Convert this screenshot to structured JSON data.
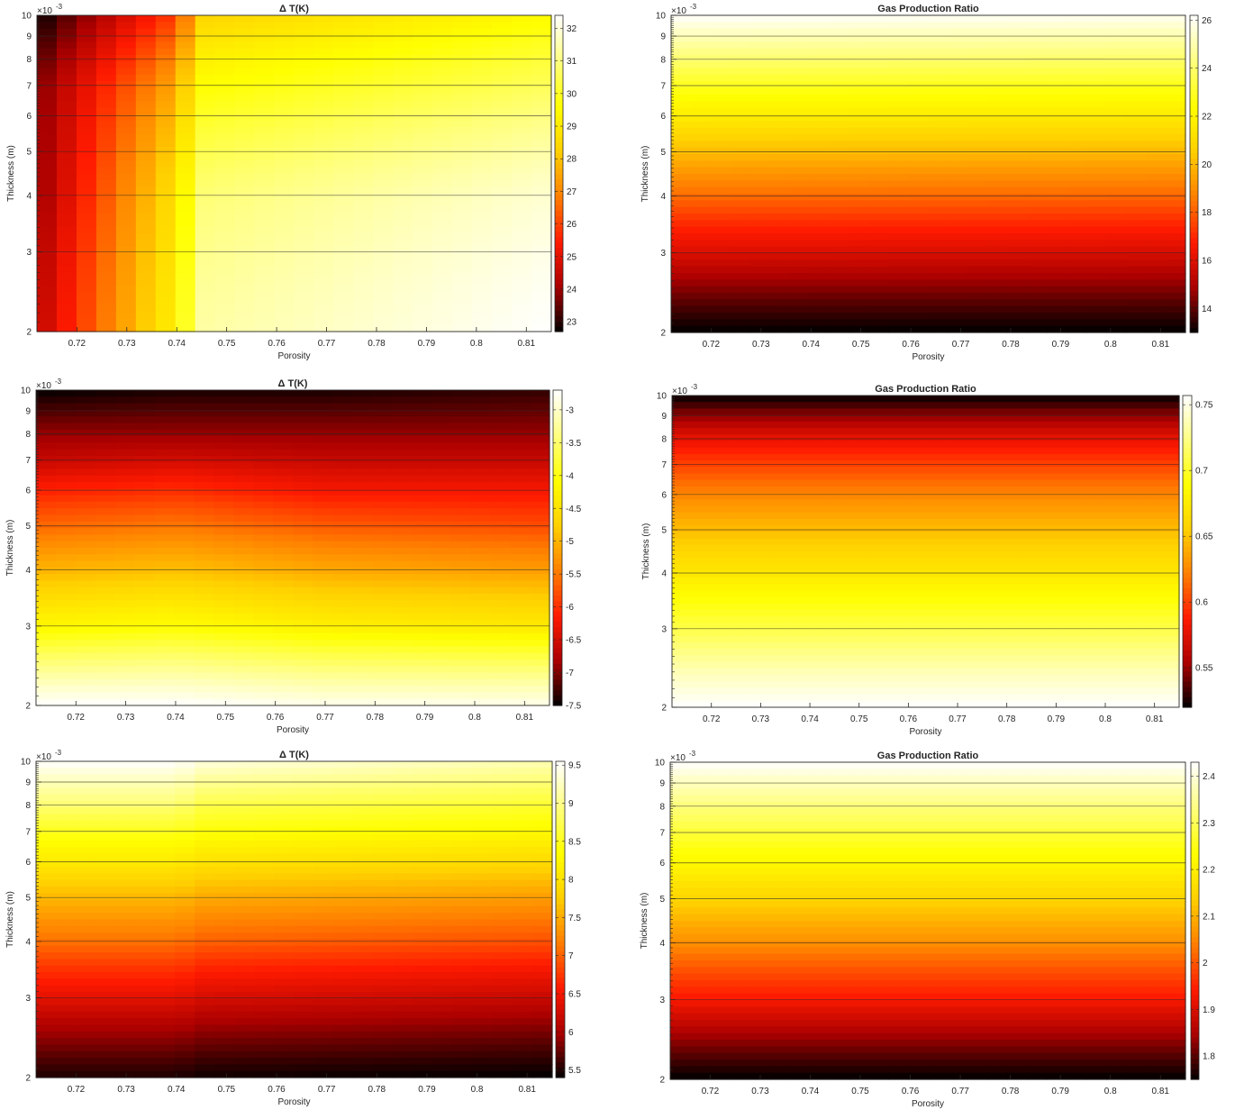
{
  "colormap": [
    "#000000",
    "#aa0000",
    "#ff1a00",
    "#ff7f00",
    "#ffd000",
    "#ffff00",
    "#ffff80",
    "#ffffff"
  ],
  "chart_data": [
    {
      "type": "heatmap",
      "title": "Δ T(K)",
      "xlabel": "Porosity",
      "ylabel": "Thickness (m)",
      "yscale": "log",
      "y_exponent_label": "×10",
      "y_exponent": "-3",
      "xlim": [
        0.712,
        0.815
      ],
      "ylim": [
        2,
        10
      ],
      "xticks": [
        0.72,
        0.73,
        0.74,
        0.75,
        0.76,
        0.77,
        0.78,
        0.79,
        0.8,
        0.81
      ],
      "xtick_labels": [
        "0.72",
        "0.73",
        "0.74",
        "0.75",
        "0.76",
        "0.77",
        "0.78",
        "0.79",
        "0.8",
        "0.81"
      ],
      "yticks": [
        2,
        3,
        4,
        5,
        6,
        7,
        8,
        9,
        10
      ],
      "ytick_labels": [
        "2",
        "3",
        "4",
        "5",
        "6",
        "7",
        "8",
        "9",
        "10"
      ],
      "color_range": [
        22.7,
        32.4
      ],
      "colorbar_ticks": [
        23,
        24,
        25,
        26,
        27,
        28,
        29,
        30,
        31,
        32
      ],
      "colorbar_labels": [
        "23",
        "24",
        "25",
        "26",
        "27",
        "28",
        "29",
        "30",
        "31",
        "32"
      ],
      "porosity": [
        0.712,
        0.74,
        0.745,
        0.815
      ],
      "thickness": [
        2,
        4,
        7,
        10
      ],
      "values": [
        [
          24.4,
          29.3,
          31.4,
          32.4
        ],
        [
          23.9,
          28.8,
          30.9,
          31.9
        ],
        [
          23.7,
          27.6,
          29.6,
          30.6
        ],
        [
          22.7,
          26.0,
          28.4,
          29.5
        ]
      ]
    },
    {
      "type": "heatmap",
      "title": "Gas Production Ratio",
      "xlabel": "Porosity",
      "ylabel": "Thickness (m)",
      "yscale": "log",
      "y_exponent_label": "×10",
      "y_exponent": "-3",
      "xlim": [
        0.712,
        0.815
      ],
      "ylim": [
        2,
        10
      ],
      "xticks": [
        0.72,
        0.73,
        0.74,
        0.75,
        0.76,
        0.77,
        0.78,
        0.79,
        0.8,
        0.81
      ],
      "xtick_labels": [
        "0.72",
        "0.73",
        "0.74",
        "0.75",
        "0.76",
        "0.77",
        "0.78",
        "0.79",
        "0.8",
        "0.81"
      ],
      "yticks": [
        2,
        3,
        4,
        5,
        6,
        7,
        8,
        9,
        10
      ],
      "ytick_labels": [
        "2",
        "3",
        "4",
        "5",
        "6",
        "7",
        "8",
        "9",
        "10"
      ],
      "color_range": [
        13.0,
        26.2
      ],
      "colorbar_ticks": [
        14,
        16,
        18,
        20,
        22,
        24,
        26
      ],
      "colorbar_labels": [
        "14",
        "16",
        "18",
        "20",
        "22",
        "24",
        "26"
      ],
      "porosity": [
        0.712,
        0.815
      ],
      "thickness": [
        2,
        3,
        4,
        5,
        6,
        7,
        8,
        10
      ],
      "values": [
        [
          13.0,
          13.0
        ],
        [
          16.0,
          15.9
        ],
        [
          18.3,
          18.2
        ],
        [
          20.1,
          20.0
        ],
        [
          21.7,
          21.6
        ],
        [
          22.9,
          22.8
        ],
        [
          24.1,
          24.0
        ],
        [
          26.2,
          26.0
        ]
      ]
    },
    {
      "type": "heatmap",
      "title": "Δ T(K)",
      "xlabel": "Porosity",
      "ylabel": "Thickness (m)",
      "yscale": "log",
      "y_exponent_label": "×10",
      "y_exponent": "-3",
      "xlim": [
        0.712,
        0.815
      ],
      "ylim": [
        2,
        10
      ],
      "xticks": [
        0.72,
        0.73,
        0.74,
        0.75,
        0.76,
        0.77,
        0.78,
        0.79,
        0.8,
        0.81
      ],
      "xtick_labels": [
        "0.72",
        "0.73",
        "0.74",
        "0.75",
        "0.76",
        "0.77",
        "0.78",
        "0.79",
        "0.8",
        "0.81"
      ],
      "yticks": [
        2,
        3,
        4,
        5,
        6,
        7,
        8,
        9,
        10
      ],
      "ytick_labels": [
        "2",
        "3",
        "4",
        "5",
        "6",
        "7",
        "8",
        "9",
        "10"
      ],
      "color_range": [
        -7.5,
        -2.7
      ],
      "colorbar_ticks": [
        -7.5,
        -7,
        -6.5,
        -6,
        -5.5,
        -5,
        -4.5,
        -4,
        -3.5,
        -3
      ],
      "colorbar_labels": [
        "-7.5",
        "-7",
        "-6.5",
        "-6",
        "-5.5",
        "-5",
        "-4.5",
        "-4",
        "-3.5",
        "-3"
      ],
      "porosity": [
        0.712,
        0.74,
        0.77,
        0.815
      ],
      "thickness": [
        2,
        3,
        4,
        5,
        6,
        7,
        8,
        10
      ],
      "values": [
        [
          -2.7,
          -2.7,
          -2.8,
          -2.8
        ],
        [
          -4.2,
          -4.1,
          -4.3,
          -4.4
        ],
        [
          -5.0,
          -4.9,
          -5.1,
          -5.2
        ],
        [
          -5.6,
          -5.5,
          -5.7,
          -5.8
        ],
        [
          -6.1,
          -6.0,
          -6.2,
          -6.2
        ],
        [
          -6.6,
          -6.5,
          -6.6,
          -6.6
        ],
        [
          -6.9,
          -6.9,
          -6.9,
          -6.9
        ],
        [
          -7.5,
          -7.4,
          -7.4,
          -7.3
        ]
      ]
    },
    {
      "type": "heatmap",
      "title": "Gas Production Ratio",
      "xlabel": "Porosity",
      "ylabel": "Thickness (m)",
      "yscale": "log",
      "y_exponent_label": "×10",
      "y_exponent": "-3",
      "xlim": [
        0.712,
        0.815
      ],
      "ylim": [
        2,
        10
      ],
      "xticks": [
        0.72,
        0.73,
        0.74,
        0.75,
        0.76,
        0.77,
        0.78,
        0.79,
        0.8,
        0.81
      ],
      "xtick_labels": [
        "0.72",
        "0.73",
        "0.74",
        "0.75",
        "0.76",
        "0.77",
        "0.78",
        "0.79",
        "0.8",
        "0.81"
      ],
      "yticks": [
        2,
        3,
        4,
        5,
        6,
        7,
        8,
        9,
        10
      ],
      "ytick_labels": [
        "2",
        "3",
        "4",
        "5",
        "6",
        "7",
        "8",
        "9",
        "10"
      ],
      "color_range": [
        0.52,
        0.757
      ],
      "colorbar_ticks": [
        0.55,
        0.6,
        0.65,
        0.7,
        0.75
      ],
      "colorbar_labels": [
        "0.55",
        "0.6",
        "0.65",
        "0.7",
        "0.75"
      ],
      "porosity": [
        0.712,
        0.815
      ],
      "thickness": [
        2,
        3,
        4,
        5,
        6,
        7,
        8,
        10
      ],
      "values": [
        [
          0.757,
          0.757
        ],
        [
          0.708,
          0.708
        ],
        [
          0.672,
          0.672
        ],
        [
          0.647,
          0.647
        ],
        [
          0.624,
          0.624
        ],
        [
          0.601,
          0.601
        ],
        [
          0.578,
          0.578
        ],
        [
          0.52,
          0.52
        ]
      ]
    },
    {
      "type": "heatmap",
      "title": "Δ T(K)",
      "xlabel": "Porosity",
      "ylabel": "Thickness (m)",
      "yscale": "log",
      "y_exponent_label": "×10",
      "y_exponent": "-3",
      "xlim": [
        0.712,
        0.815
      ],
      "ylim": [
        2,
        10
      ],
      "xticks": [
        0.72,
        0.73,
        0.74,
        0.75,
        0.76,
        0.77,
        0.78,
        0.79,
        0.8,
        0.81
      ],
      "xtick_labels": [
        "0.72",
        "0.73",
        "0.74",
        "0.75",
        "0.76",
        "0.77",
        "0.78",
        "0.79",
        "0.8",
        "0.81"
      ],
      "yticks": [
        2,
        3,
        4,
        5,
        6,
        7,
        8,
        9,
        10
      ],
      "ytick_labels": [
        "2",
        "3",
        "4",
        "5",
        "6",
        "7",
        "8",
        "9",
        "10"
      ],
      "color_range": [
        5.4,
        9.55
      ],
      "colorbar_ticks": [
        5.5,
        6,
        6.5,
        7,
        7.5,
        8,
        8.5,
        9,
        9.5
      ],
      "colorbar_labels": [
        "5.5",
        "6",
        "6.5",
        "7",
        "7.5",
        "8",
        "8.5",
        "9",
        "9.5"
      ],
      "porosity": [
        0.712,
        0.74,
        0.745,
        0.815
      ],
      "thickness": [
        2,
        3,
        4,
        5,
        6,
        7,
        8,
        10
      ],
      "values": [
        [
          5.5,
          5.5,
          5.45,
          5.4
        ],
        [
          6.4,
          6.4,
          6.3,
          6.2
        ],
        [
          7.1,
          7.1,
          7.0,
          6.9
        ],
        [
          7.6,
          7.6,
          7.5,
          7.4
        ],
        [
          8.1,
          8.1,
          8.0,
          7.9
        ],
        [
          8.5,
          8.5,
          8.4,
          8.3
        ],
        [
          8.9,
          8.9,
          8.7,
          8.6
        ],
        [
          9.55,
          9.55,
          9.4,
          9.2
        ]
      ]
    },
    {
      "type": "heatmap",
      "title": "Gas Production Ratio",
      "xlabel": "Porosity",
      "ylabel": "Thickness (m)",
      "yscale": "log",
      "y_exponent_label": "×10",
      "y_exponent": "-3",
      "xlim": [
        0.712,
        0.815
      ],
      "ylim": [
        2,
        10
      ],
      "xticks": [
        0.72,
        0.73,
        0.74,
        0.75,
        0.76,
        0.77,
        0.78,
        0.79,
        0.8,
        0.81
      ],
      "xtick_labels": [
        "0.72",
        "0.73",
        "0.74",
        "0.75",
        "0.76",
        "0.77",
        "0.78",
        "0.79",
        "0.8",
        "0.81"
      ],
      "yticks": [
        2,
        3,
        4,
        5,
        6,
        7,
        8,
        9,
        10
      ],
      "ytick_labels": [
        "2",
        "3",
        "4",
        "5",
        "6",
        "7",
        "8",
        "9",
        "10"
      ],
      "color_range": [
        1.75,
        2.43
      ],
      "colorbar_ticks": [
        1.8,
        1.9,
        2,
        2.1,
        2.2,
        2.3,
        2.4
      ],
      "colorbar_labels": [
        "1.8",
        "1.9",
        "2",
        "2.1",
        "2.2",
        "2.3",
        "2.4"
      ],
      "porosity": [
        0.712,
        0.815
      ],
      "thickness": [
        2,
        3,
        4,
        5,
        6,
        7,
        8,
        10
      ],
      "values": [
        [
          1.75,
          1.75
        ],
        [
          1.94,
          1.94
        ],
        [
          2.06,
          2.06
        ],
        [
          2.15,
          2.15
        ],
        [
          2.22,
          2.22
        ],
        [
          2.28,
          2.28
        ],
        [
          2.33,
          2.33
        ],
        [
          2.43,
          2.43
        ]
      ]
    }
  ]
}
